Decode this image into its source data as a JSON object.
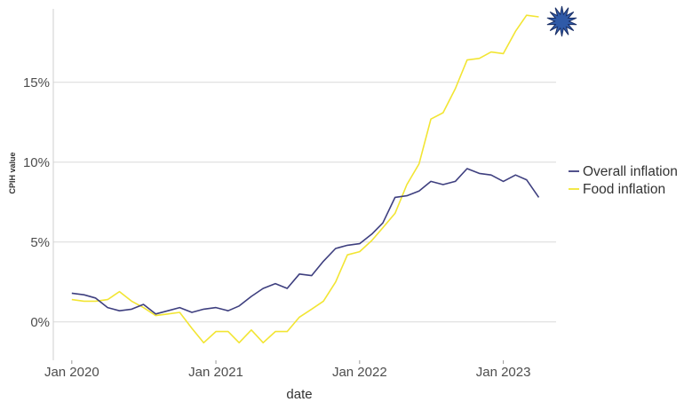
{
  "chart_data": {
    "type": "line",
    "xlabel": "date",
    "ylabel": "CPIH value",
    "x_tick_labels": [
      "Jan 2020",
      "Jan 2021",
      "Jan 2022",
      "Jan 2023"
    ],
    "y_tick_labels": [
      "0%",
      "5%",
      "10%",
      "15%"
    ],
    "y_ticks": [
      0,
      5,
      10,
      15
    ],
    "ylim": [
      -2.4,
      19.6
    ],
    "xlim": [
      "2019-11-15",
      "2023-05-15"
    ],
    "grid": "horizontal",
    "legend_position": "right",
    "x": [
      "2020-01",
      "2020-02",
      "2020-03",
      "2020-04",
      "2020-05",
      "2020-06",
      "2020-07",
      "2020-08",
      "2020-09",
      "2020-10",
      "2020-11",
      "2020-12",
      "2021-01",
      "2021-02",
      "2021-03",
      "2021-04",
      "2021-05",
      "2021-06",
      "2021-07",
      "2021-08",
      "2021-09",
      "2021-10",
      "2021-11",
      "2021-12",
      "2022-01",
      "2022-02",
      "2022-03",
      "2022-04",
      "2022-05",
      "2022-06",
      "2022-07",
      "2022-08",
      "2022-09",
      "2022-10",
      "2022-11",
      "2022-12",
      "2023-01",
      "2023-02",
      "2023-03",
      "2023-04"
    ],
    "series": [
      {
        "name": "Overall inflation",
        "color": "#3e3f7f",
        "values": [
          1.8,
          1.7,
          1.5,
          0.9,
          0.7,
          0.8,
          1.1,
          0.5,
          0.7,
          0.9,
          0.6,
          0.8,
          0.9,
          0.7,
          1.0,
          1.6,
          2.1,
          2.4,
          2.1,
          3.0,
          2.9,
          3.8,
          4.6,
          4.8,
          4.9,
          5.5,
          6.2,
          7.8,
          7.9,
          8.2,
          8.8,
          8.6,
          8.8,
          9.6,
          9.3,
          9.2,
          8.8,
          9.2,
          8.9,
          7.8
        ]
      },
      {
        "name": "Food inflation",
        "color": "#f2e533",
        "values": [
          1.4,
          1.3,
          1.3,
          1.4,
          1.9,
          1.3,
          0.9,
          0.4,
          0.5,
          0.6,
          -0.4,
          -1.3,
          -0.6,
          -0.6,
          -1.3,
          -0.5,
          -1.3,
          -0.6,
          -0.6,
          0.3,
          0.8,
          1.3,
          2.5,
          4.2,
          4.4,
          5.1,
          5.9,
          6.8,
          8.6,
          9.9,
          12.7,
          13.1,
          14.6,
          16.4,
          16.5,
          16.9,
          16.8,
          18.2,
          19.2,
          19.1
        ]
      }
    ]
  },
  "marker": {
    "icon": "starburst-icon",
    "fill": "#2f5aa8",
    "stroke": "#1a2f66"
  }
}
